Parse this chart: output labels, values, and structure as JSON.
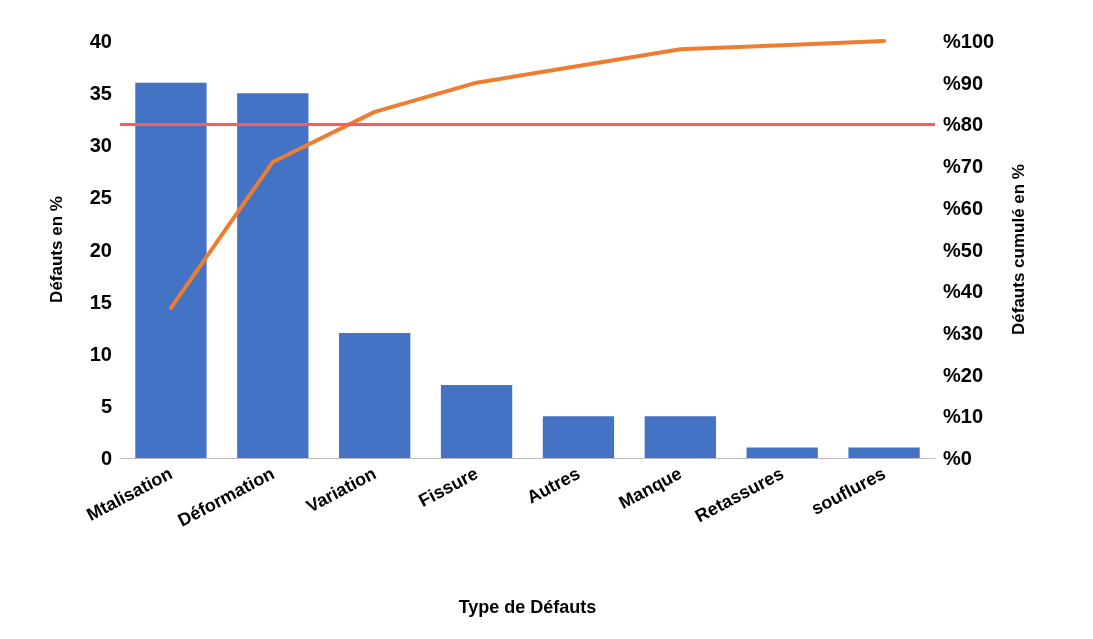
{
  "chart_data": {
    "type": "bar",
    "xlabel": "Type de Défauts",
    "ylabel": "Défauts en %",
    "y2label": "Défauts cumulé en %",
    "categories": [
      "Mtalisation",
      "Déformation",
      "Variation",
      "Fissure",
      "Autres",
      "Manque",
      "Retassures",
      "souflures"
    ],
    "series": [
      {
        "color": "#4472c4",
        "values": [
          36,
          35,
          12,
          7,
          4,
          4,
          1,
          1
        ]
      },
      {
        "type": "line",
        "axis": "y2",
        "color": "#ed7d31",
        "values": [
          36,
          71,
          83,
          90,
          94,
          98,
          99,
          100
        ]
      }
    ],
    "ylim": [
      0,
      40
    ],
    "yticks": [
      0,
      5,
      10,
      15,
      20,
      25,
      30,
      35,
      40
    ],
    "y2lim": [
      0,
      100
    ],
    "y2ticks": [
      {
        "value": 0,
        "label": "%0"
      },
      {
        "value": 10,
        "label": "%10"
      },
      {
        "value": 20,
        "label": "%20"
      },
      {
        "value": 30,
        "label": "%30"
      },
      {
        "value": 40,
        "label": "%40"
      },
      {
        "value": 50,
        "label": "%50"
      },
      {
        "value": 60,
        "label": "%60"
      },
      {
        "value": 70,
        "label": "%70"
      },
      {
        "value": 80,
        "label": "%80"
      },
      {
        "value": 90,
        "label": "%90"
      },
      {
        "value": 100,
        "label": "%100"
      }
    ],
    "ref_lines": [
      {
        "axis": "y2",
        "value": 80,
        "color": "#ff5a5a"
      }
    ],
    "grid": false,
    "marker": "none",
    "line_style": "solid"
  }
}
